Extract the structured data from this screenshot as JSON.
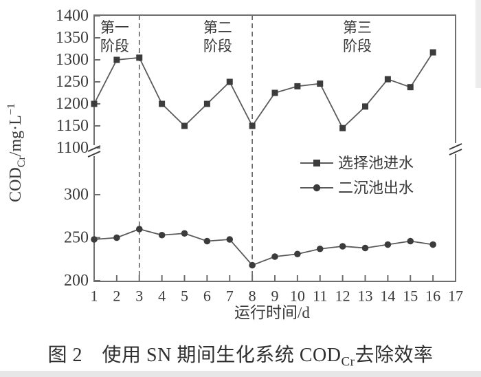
{
  "figure_caption": {
    "prefix": "图 2　使用 SN 期间生化系统 COD",
    "subscript": "Cr",
    "suffix": "去除效率"
  },
  "chart_data": {
    "type": "line",
    "title": "",
    "xlabel": "运行时间/d",
    "ylabel": {
      "prefix": "COD",
      "subscript": "Cr",
      "mid": "/mg·L",
      "superscript": "−1"
    },
    "x_ticks": [
      1,
      2,
      3,
      4,
      5,
      6,
      7,
      8,
      9,
      10,
      11,
      12,
      13,
      14,
      15,
      16,
      17
    ],
    "x": [
      1,
      2,
      3,
      4,
      5,
      6,
      7,
      8,
      9,
      10,
      11,
      12,
      13,
      14,
      15,
      16
    ],
    "series": [
      {
        "name": "选择池进水",
        "marker": "square",
        "values": [
          1200,
          1300,
          1305,
          1200,
          1150,
          1200,
          1250,
          1150,
          1225,
          1240,
          1246,
          1145,
          1194,
          1256,
          1238,
          1317
        ]
      },
      {
        "name": "二沉池出水",
        "marker": "circle",
        "values": [
          248,
          250,
          260,
          253,
          255,
          246,
          248,
          218,
          228,
          231,
          237,
          240,
          238,
          242,
          246,
          242
        ]
      }
    ],
    "phases": [
      {
        "line1": "第一",
        "line2": "阶段",
        "x_center": 1.91
      },
      {
        "line1": "第二",
        "line2": "阶段",
        "x_center": 6.47
      },
      {
        "line1": "第三",
        "line2": "阶段",
        "x_center": 12.65
      }
    ],
    "phase_boundaries_x": [
      3,
      8
    ],
    "axis": {
      "x_min": 1,
      "x_max": 17,
      "broken_y_axis": true,
      "top_segment": {
        "min": 1100,
        "max": 1400,
        "ticks": [
          1400,
          1350,
          1300,
          1250,
          1200,
          1150,
          1100
        ]
      },
      "bottom_segment": {
        "min": 200,
        "max": 300,
        "ticks": [
          300,
          250,
          200
        ]
      }
    },
    "legend": {
      "position": "inside-middle-right",
      "entries": [
        {
          "label": "选择池进水",
          "marker": "square"
        },
        {
          "label": "二沉池出水",
          "marker": "circle"
        }
      ]
    },
    "grid": false
  },
  "colors": {
    "ink": "#3a3a3a",
    "frame": "#6e6e6e",
    "line": "#5a5a5a",
    "marker": "#3c3c3c",
    "dashed": "#5f5f5f",
    "background": "#ffffff",
    "scan_edge": "#e7e7e7"
  }
}
